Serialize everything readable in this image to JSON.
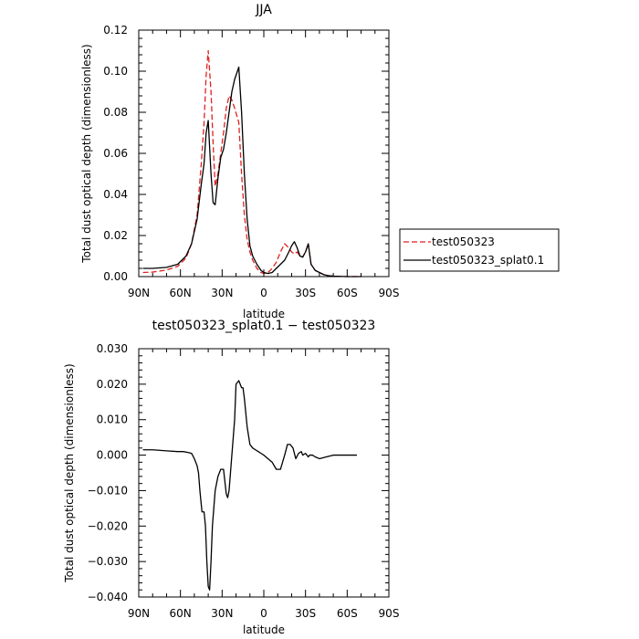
{
  "chart_data": [
    {
      "type": "line",
      "title": "JJA",
      "xlabel": "latitude",
      "ylabel": "Total dust optical depth (dimensionless)",
      "xlim": [
        90,
        -90
      ],
      "ylim": [
        0,
        0.12
      ],
      "xticks": [
        90,
        60,
        30,
        0,
        -30,
        -60,
        -90
      ],
      "xticklabels": [
        "90N",
        "60N",
        "30N",
        "0",
        "30S",
        "60S",
        "90S"
      ],
      "yticks": [
        0,
        0.02,
        0.04,
        0.06,
        0.08,
        0.1,
        0.12
      ],
      "yticklabels": [
        "0.00",
        "0.02",
        "0.04",
        "0.06",
        "0.08",
        "0.10",
        "0.12"
      ],
      "legend": "right",
      "series": [
        {
          "name": "test050323",
          "color": "#e02020",
          "dash": "dashed",
          "x": [
            87,
            80,
            70,
            62,
            56,
            52,
            48,
            45,
            43,
            41.5,
            40,
            38,
            36.5,
            35,
            33,
            31,
            29,
            27,
            25,
            23,
            21,
            18,
            16,
            14,
            12,
            10,
            8,
            5,
            2,
            0,
            -3,
            -6,
            -9,
            -12,
            -15,
            -18,
            -20,
            -22,
            -24,
            -26,
            -28,
            -30,
            -32,
            -34,
            -37,
            -40,
            -43,
            -46,
            -50,
            -55,
            -60,
            -70
          ],
          "y": [
            0.002,
            0.0022,
            0.0032,
            0.005,
            0.009,
            0.016,
            0.03,
            0.055,
            0.075,
            0.098,
            0.11,
            0.09,
            0.065,
            0.044,
            0.05,
            0.06,
            0.07,
            0.082,
            0.088,
            0.086,
            0.082,
            0.075,
            0.05,
            0.03,
            0.018,
            0.012,
            0.008,
            0.004,
            0.002,
            0.0015,
            0.002,
            0.004,
            0.007,
            0.012,
            0.016,
            0.014,
            0.012,
            0.011,
            0.012,
            0.01,
            0.0095,
            0.012,
            0.016,
            0.006,
            0.003,
            0.002,
            0.001,
            0.0005,
            0.0002,
            0.0001,
            0,
            0
          ]
        },
        {
          "name": "test050323_splat0.1",
          "color": "#000000",
          "dash": "solid",
          "x": [
            87,
            80,
            70,
            62,
            56,
            52,
            48,
            45,
            43,
            41.5,
            40,
            38,
            36.5,
            35,
            33,
            31,
            29,
            27,
            25,
            23,
            21,
            18,
            16,
            14,
            12,
            10,
            8,
            5,
            2,
            0,
            -3,
            -6,
            -9,
            -12,
            -15,
            -18,
            -20,
            -22,
            -24,
            -26,
            -28,
            -30,
            -32,
            -34,
            -37,
            -40,
            -43,
            -46,
            -50,
            -55,
            -60,
            -70
          ],
          "y": [
            0.004,
            0.004,
            0.0045,
            0.006,
            0.01,
            0.016,
            0.028,
            0.045,
            0.055,
            0.07,
            0.076,
            0.05,
            0.036,
            0.035,
            0.048,
            0.058,
            0.062,
            0.07,
            0.08,
            0.09,
            0.096,
            0.102,
            0.08,
            0.05,
            0.028,
            0.015,
            0.01,
            0.006,
            0.003,
            0.002,
            0.0015,
            0.002,
            0.004,
            0.006,
            0.008,
            0.012,
            0.015,
            0.017,
            0.014,
            0.01,
            0.0095,
            0.012,
            0.016,
            0.006,
            0.003,
            0.002,
            0.001,
            0.0005,
            0.0002,
            0.0001,
            0,
            0
          ]
        }
      ]
    },
    {
      "type": "line",
      "title": "test050323_splat0.1 − test050323",
      "xlabel": "latitude",
      "ylabel": "Total dust optical depth (dimensionless)",
      "xlim": [
        90,
        -90
      ],
      "ylim": [
        -0.04,
        0.03
      ],
      "xticks": [
        90,
        60,
        30,
        0,
        -30,
        -60,
        -90
      ],
      "xticklabels": [
        "90N",
        "60N",
        "30N",
        "0",
        "30S",
        "60S",
        "90S"
      ],
      "yticks": [
        -0.04,
        -0.03,
        -0.02,
        -0.01,
        0,
        0.01,
        0.02,
        0.03
      ],
      "yticklabels": [
        "−0.040",
        "−0.030",
        "−0.020",
        "−0.010",
        "0.000",
        "0.010",
        "0.020",
        "0.030"
      ],
      "series": [
        {
          "color": "#000000",
          "dash": "solid",
          "x": [
            87,
            80,
            70,
            62,
            58,
            55,
            52,
            50,
            48,
            47,
            46,
            44.5,
            43,
            42,
            41,
            40,
            39,
            38,
            37,
            35,
            33,
            31,
            29,
            27,
            26,
            25,
            23,
            21,
            20,
            18,
            16,
            15,
            14,
            12,
            10,
            8,
            6,
            4,
            2,
            0,
            -3,
            -6,
            -9,
            -12,
            -15,
            -17,
            -19,
            -21,
            -23,
            -25,
            -27,
            -28,
            -30,
            -32,
            -33,
            -35,
            -37,
            -40,
            -45,
            -50,
            -55,
            -60,
            -65,
            -67
          ],
          "y": [
            0.0015,
            0.0015,
            0.0012,
            0.001,
            0.001,
            0.0008,
            0.0005,
            -0.001,
            -0.003,
            -0.005,
            -0.01,
            -0.016,
            -0.016,
            -0.02,
            -0.03,
            -0.037,
            -0.038,
            -0.03,
            -0.02,
            -0.01,
            -0.006,
            -0.004,
            -0.004,
            -0.011,
            -0.012,
            -0.01,
            0,
            0.01,
            0.02,
            0.021,
            0.019,
            0.019,
            0.016,
            0.008,
            0.003,
            0.002,
            0.0015,
            0.001,
            0.0005,
            0,
            -0.001,
            -0.002,
            -0.004,
            -0.004,
            0,
            0.003,
            0.003,
            0.002,
            -0.001,
            0.0005,
            0.001,
            0,
            0.0005,
            -0.0005,
            0,
            0,
            -0.0005,
            -0.001,
            -0.0005,
            0,
            0,
            0,
            0,
            0
          ]
        }
      ]
    }
  ]
}
